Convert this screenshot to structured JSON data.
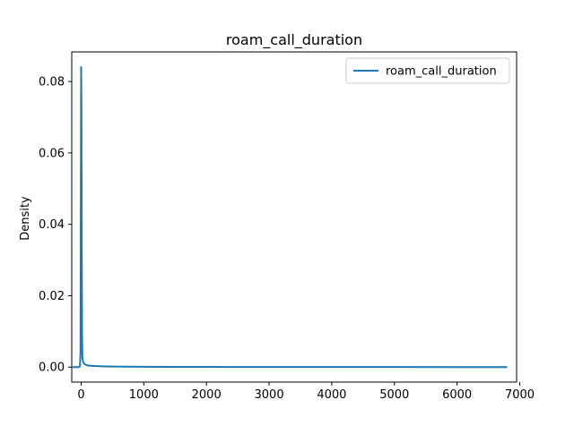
{
  "chart_data": {
    "type": "line",
    "title": "roam_call_duration",
    "xlabel": "",
    "ylabel": "Density",
    "xlim": [
      -150,
      6950
    ],
    "ylim": [
      -0.0042,
      0.0883
    ],
    "xticks": [
      0,
      1000,
      2000,
      3000,
      4000,
      5000,
      6000,
      7000
    ],
    "xtick_labels": [
      "0",
      "1000",
      "2000",
      "3000",
      "4000",
      "5000",
      "6000",
      "7000"
    ],
    "yticks": [
      0.0,
      0.02,
      0.04,
      0.06,
      0.08
    ],
    "ytick_labels": [
      "0.00",
      "0.02",
      "0.04",
      "0.06",
      "0.08"
    ],
    "grid": false,
    "legend_position": "top-right",
    "series": [
      {
        "name": "roam_call_duration",
        "color": "#1f77b4",
        "x": [
          -150,
          -40,
          -20,
          -10,
          -5,
          0,
          5,
          10,
          15,
          20,
          30,
          50,
          80,
          120,
          200,
          400,
          700,
          1000,
          1500,
          2000,
          3000,
          4000,
          5000,
          6000,
          6800
        ],
        "y": [
          0.0,
          0.0,
          0.0002,
          0.004,
          0.045,
          0.084,
          0.07,
          0.03,
          0.008,
          0.0028,
          0.0015,
          0.0009,
          0.0006,
          0.0004,
          0.0003,
          0.0002,
          0.00012,
          0.0001,
          7e-05,
          5e-05,
          4e-05,
          3e-05,
          2e-05,
          1e-05,
          1e-05
        ]
      }
    ]
  }
}
